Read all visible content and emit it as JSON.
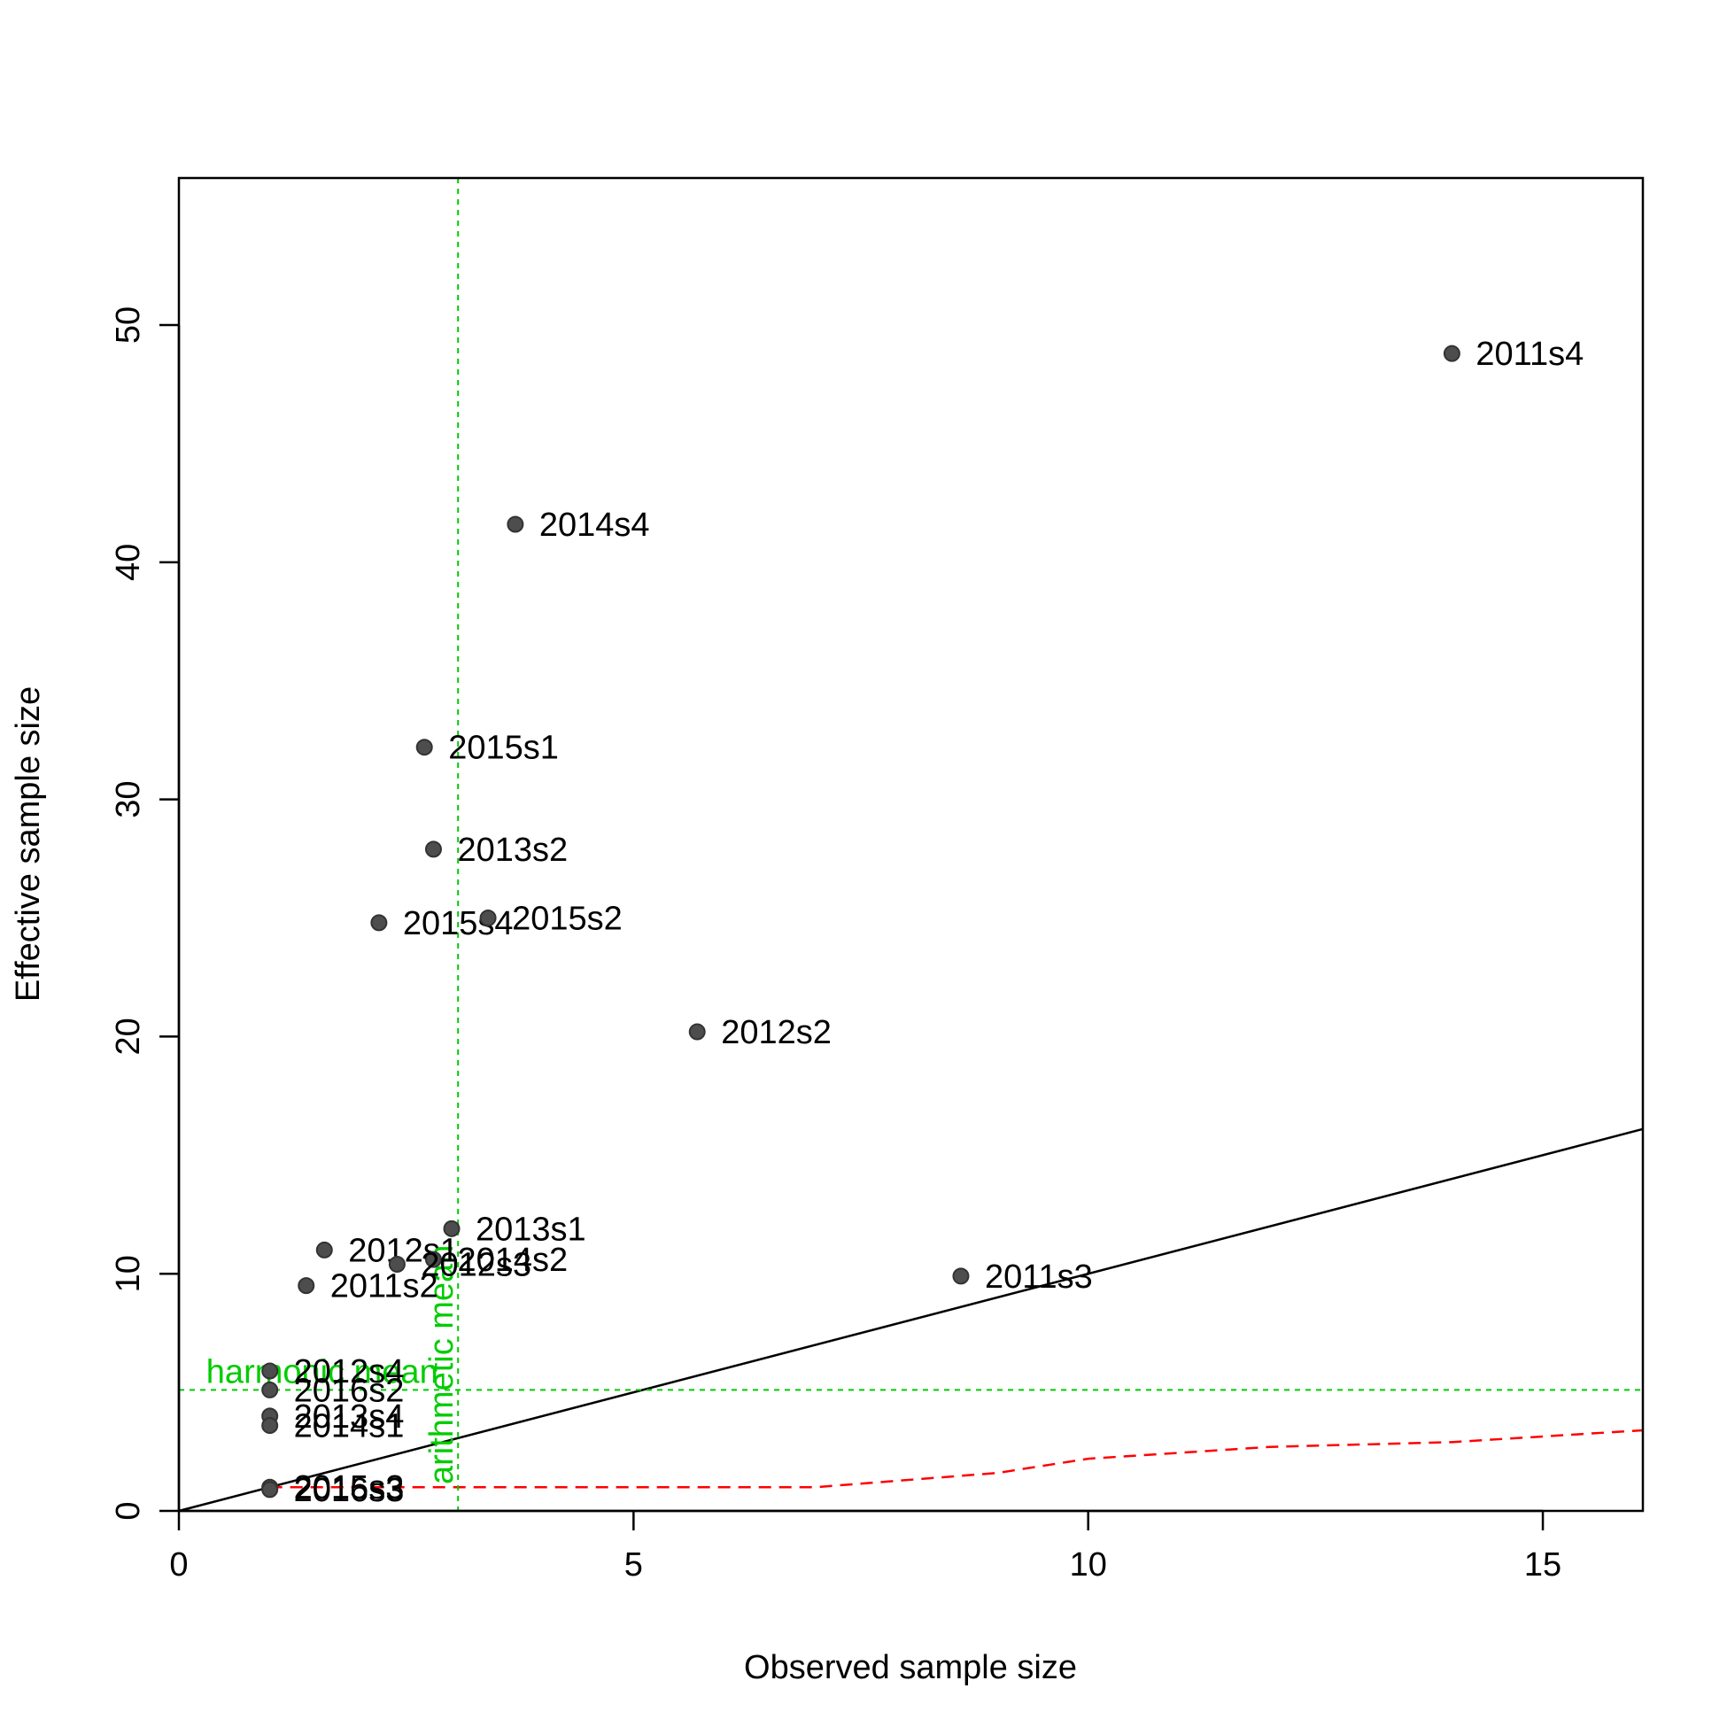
{
  "chart_data": {
    "type": "scatter",
    "xlabel": "Observed sample size",
    "ylabel": "Effective sample size",
    "xlim": [
      0,
      16.1
    ],
    "ylim": [
      0,
      56.2
    ],
    "xticks": [
      0,
      5,
      10,
      15
    ],
    "yticks": [
      0,
      10,
      20,
      30,
      40,
      50
    ],
    "grid": false,
    "points": [
      {
        "label": "2011s4",
        "x": 14.0,
        "y": 48.8
      },
      {
        "label": "2014s4",
        "x": 3.7,
        "y": 41.6
      },
      {
        "label": "2015s1",
        "x": 2.7,
        "y": 32.2
      },
      {
        "label": "2013s2",
        "x": 2.8,
        "y": 27.9
      },
      {
        "label": "2015s4",
        "x": 2.2,
        "y": 24.8
      },
      {
        "label": "2015s2",
        "x": 3.4,
        "y": 25.0
      },
      {
        "label": "2012s2",
        "x": 5.7,
        "y": 20.2
      },
      {
        "label": "2013s1",
        "x": 3.0,
        "y": 11.9
      },
      {
        "label": "2012s1",
        "x": 1.6,
        "y": 11.0
      },
      {
        "label": "2014s2",
        "x": 2.8,
        "y": 10.6
      },
      {
        "label": "2012s3",
        "x": 2.4,
        "y": 10.4
      },
      {
        "label": "2011s3",
        "x": 8.6,
        "y": 9.9
      },
      {
        "label": "2011s2",
        "x": 1.4,
        "y": 9.5
      },
      {
        "label": "2012s4",
        "x": 1.0,
        "y": 5.9
      },
      {
        "label": "2016s2",
        "x": 1.0,
        "y": 5.1
      },
      {
        "label": "2013s4",
        "x": 1.0,
        "y": 4.0
      },
      {
        "label": "2014s1",
        "x": 1.0,
        "y": 3.6
      },
      {
        "label": "2015s3",
        "x": 1.0,
        "y": 1.0
      },
      {
        "label": "2016s3",
        "x": 1.0,
        "y": 0.9
      }
    ],
    "identity_line": {
      "from": [
        0,
        0
      ],
      "to": [
        16.1,
        16.1
      ],
      "color": "#000000"
    },
    "harmonic_mean": {
      "text": "harmonic mean",
      "value": 5.1,
      "color": "#00cc00"
    },
    "arithmetic_mean": {
      "text": "arithmetic mean",
      "value": 3.07,
      "color": "#00cc00"
    },
    "red_dashed_line": {
      "color": "#ff0000",
      "x": [
        1,
        3,
        5,
        7,
        9,
        10,
        12,
        14,
        16.1
      ],
      "y": [
        1.0,
        1.0,
        1.0,
        1.0,
        1.6,
        2.2,
        2.7,
        2.9,
        3.4
      ]
    },
    "point_color": "#4d4d4d"
  }
}
